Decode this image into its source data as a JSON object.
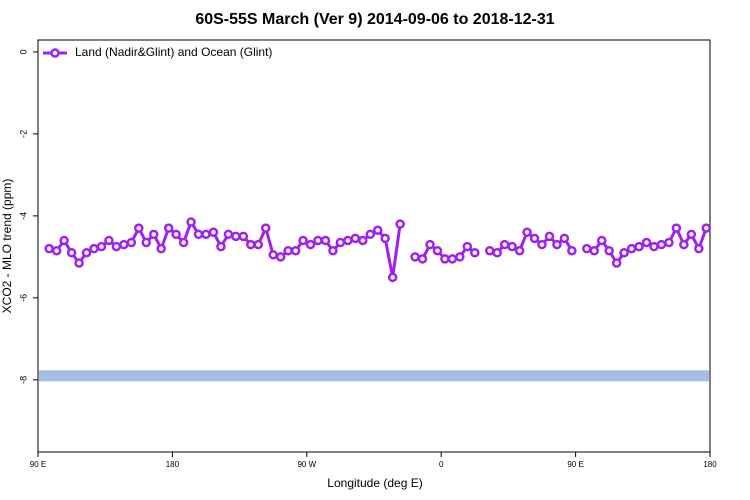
{
  "chart_data": {
    "type": "line",
    "title": "60S-55S March (Ver 9)   2014-09-06 to 2018-12-31",
    "xlabel": "Longitude (deg E)",
    "ylabel": "XCO2 - MLO trend (ppm)",
    "xlim": [
      90,
      540
    ],
    "xticks": [
      {
        "value": 90,
        "label": "90 E"
      },
      180,
      {
        "value": 270,
        "label": "90 W"
      },
      {
        "value": 360,
        "label": "0"
      },
      {
        "value": 450,
        "label": "90 E"
      },
      {
        "value": 540,
        "label": "180"
      }
    ],
    "ylim": [
      -9.76,
      0.29
    ],
    "yticks": [
      0,
      -2,
      -4,
      -6,
      -8
    ],
    "legend": "upper left",
    "reference_band": {
      "value": -7.9,
      "color": "#a5bde0"
    },
    "x": [
      97.5,
      102.5,
      107.5,
      112.5,
      117.5,
      122.5,
      127.5,
      132.5,
      137.5,
      142.5,
      147.5,
      152.5,
      157.5,
      162.5,
      167.5,
      172.5,
      177.5,
      182.5,
      187.5,
      192.5,
      197.5,
      202.5,
      207.5,
      212.5,
      217.5,
      222.5,
      227.5,
      232.5,
      237.5,
      242.5,
      247.5,
      252.5,
      257.5,
      262.5,
      267.5,
      272.5,
      277.5,
      282.5,
      287.5,
      292.5,
      297.5,
      302.5,
      307.5,
      312.5,
      317.5,
      322.5,
      327.5,
      332.5,
      337.5,
      342.5,
      347.5,
      352.5,
      357.5,
      362.5,
      367.5,
      372.5,
      377.5,
      382.5,
      387.5,
      392.5,
      397.5,
      402.5,
      407.5,
      412.5,
      417.5,
      422.5,
      427.5,
      432.5,
      437.5,
      442.5,
      447.5,
      452.5,
      457.5,
      462.5,
      467.5,
      472.5,
      477.5,
      482.5,
      487.5,
      492.5,
      497.5,
      502.5,
      507.5,
      512.5,
      517.5,
      522.5,
      527.5,
      532.5,
      537.5
    ],
    "series": [
      {
        "name": "Land (Nadir&Glint) and Ocean (Glint)",
        "color": "#a020f0",
        "values": [
          -4.8,
          -4.85,
          -4.6,
          -4.9,
          -5.15,
          -4.9,
          -4.8,
          -4.75,
          -4.6,
          -4.75,
          -4.7,
          -4.65,
          -4.3,
          -4.65,
          -4.45,
          -4.8,
          -4.3,
          -4.45,
          -4.65,
          -4.15,
          -4.45,
          -4.45,
          -4.4,
          -4.75,
          -4.45,
          -4.5,
          -4.5,
          -4.7,
          -4.7,
          -4.3,
          -4.95,
          -5.0,
          -4.85,
          -4.85,
          -4.6,
          -4.7,
          -4.6,
          -4.6,
          -4.85,
          -4.65,
          -4.6,
          -4.55,
          -4.6,
          -4.45,
          -4.35,
          -4.55,
          -5.5,
          -4.2,
          null,
          -5.0,
          -5.05,
          -4.7,
          -4.85,
          -5.05,
          -5.05,
          -5.0,
          -4.75,
          -4.9,
          null,
          -4.85,
          -4.9,
          -4.7,
          -4.75,
          -4.85,
          -4.4,
          -4.55,
          -4.7,
          -4.5,
          -4.7,
          -4.55,
          -4.85,
          null,
          -4.8,
          -4.85,
          -4.6,
          -4.85,
          -5.15,
          -4.9,
          -4.8,
          -4.75,
          -4.65,
          -4.75,
          -4.7,
          -4.65,
          -4.3,
          -4.7,
          -4.45,
          -4.8,
          -4.3
        ]
      }
    ]
  }
}
